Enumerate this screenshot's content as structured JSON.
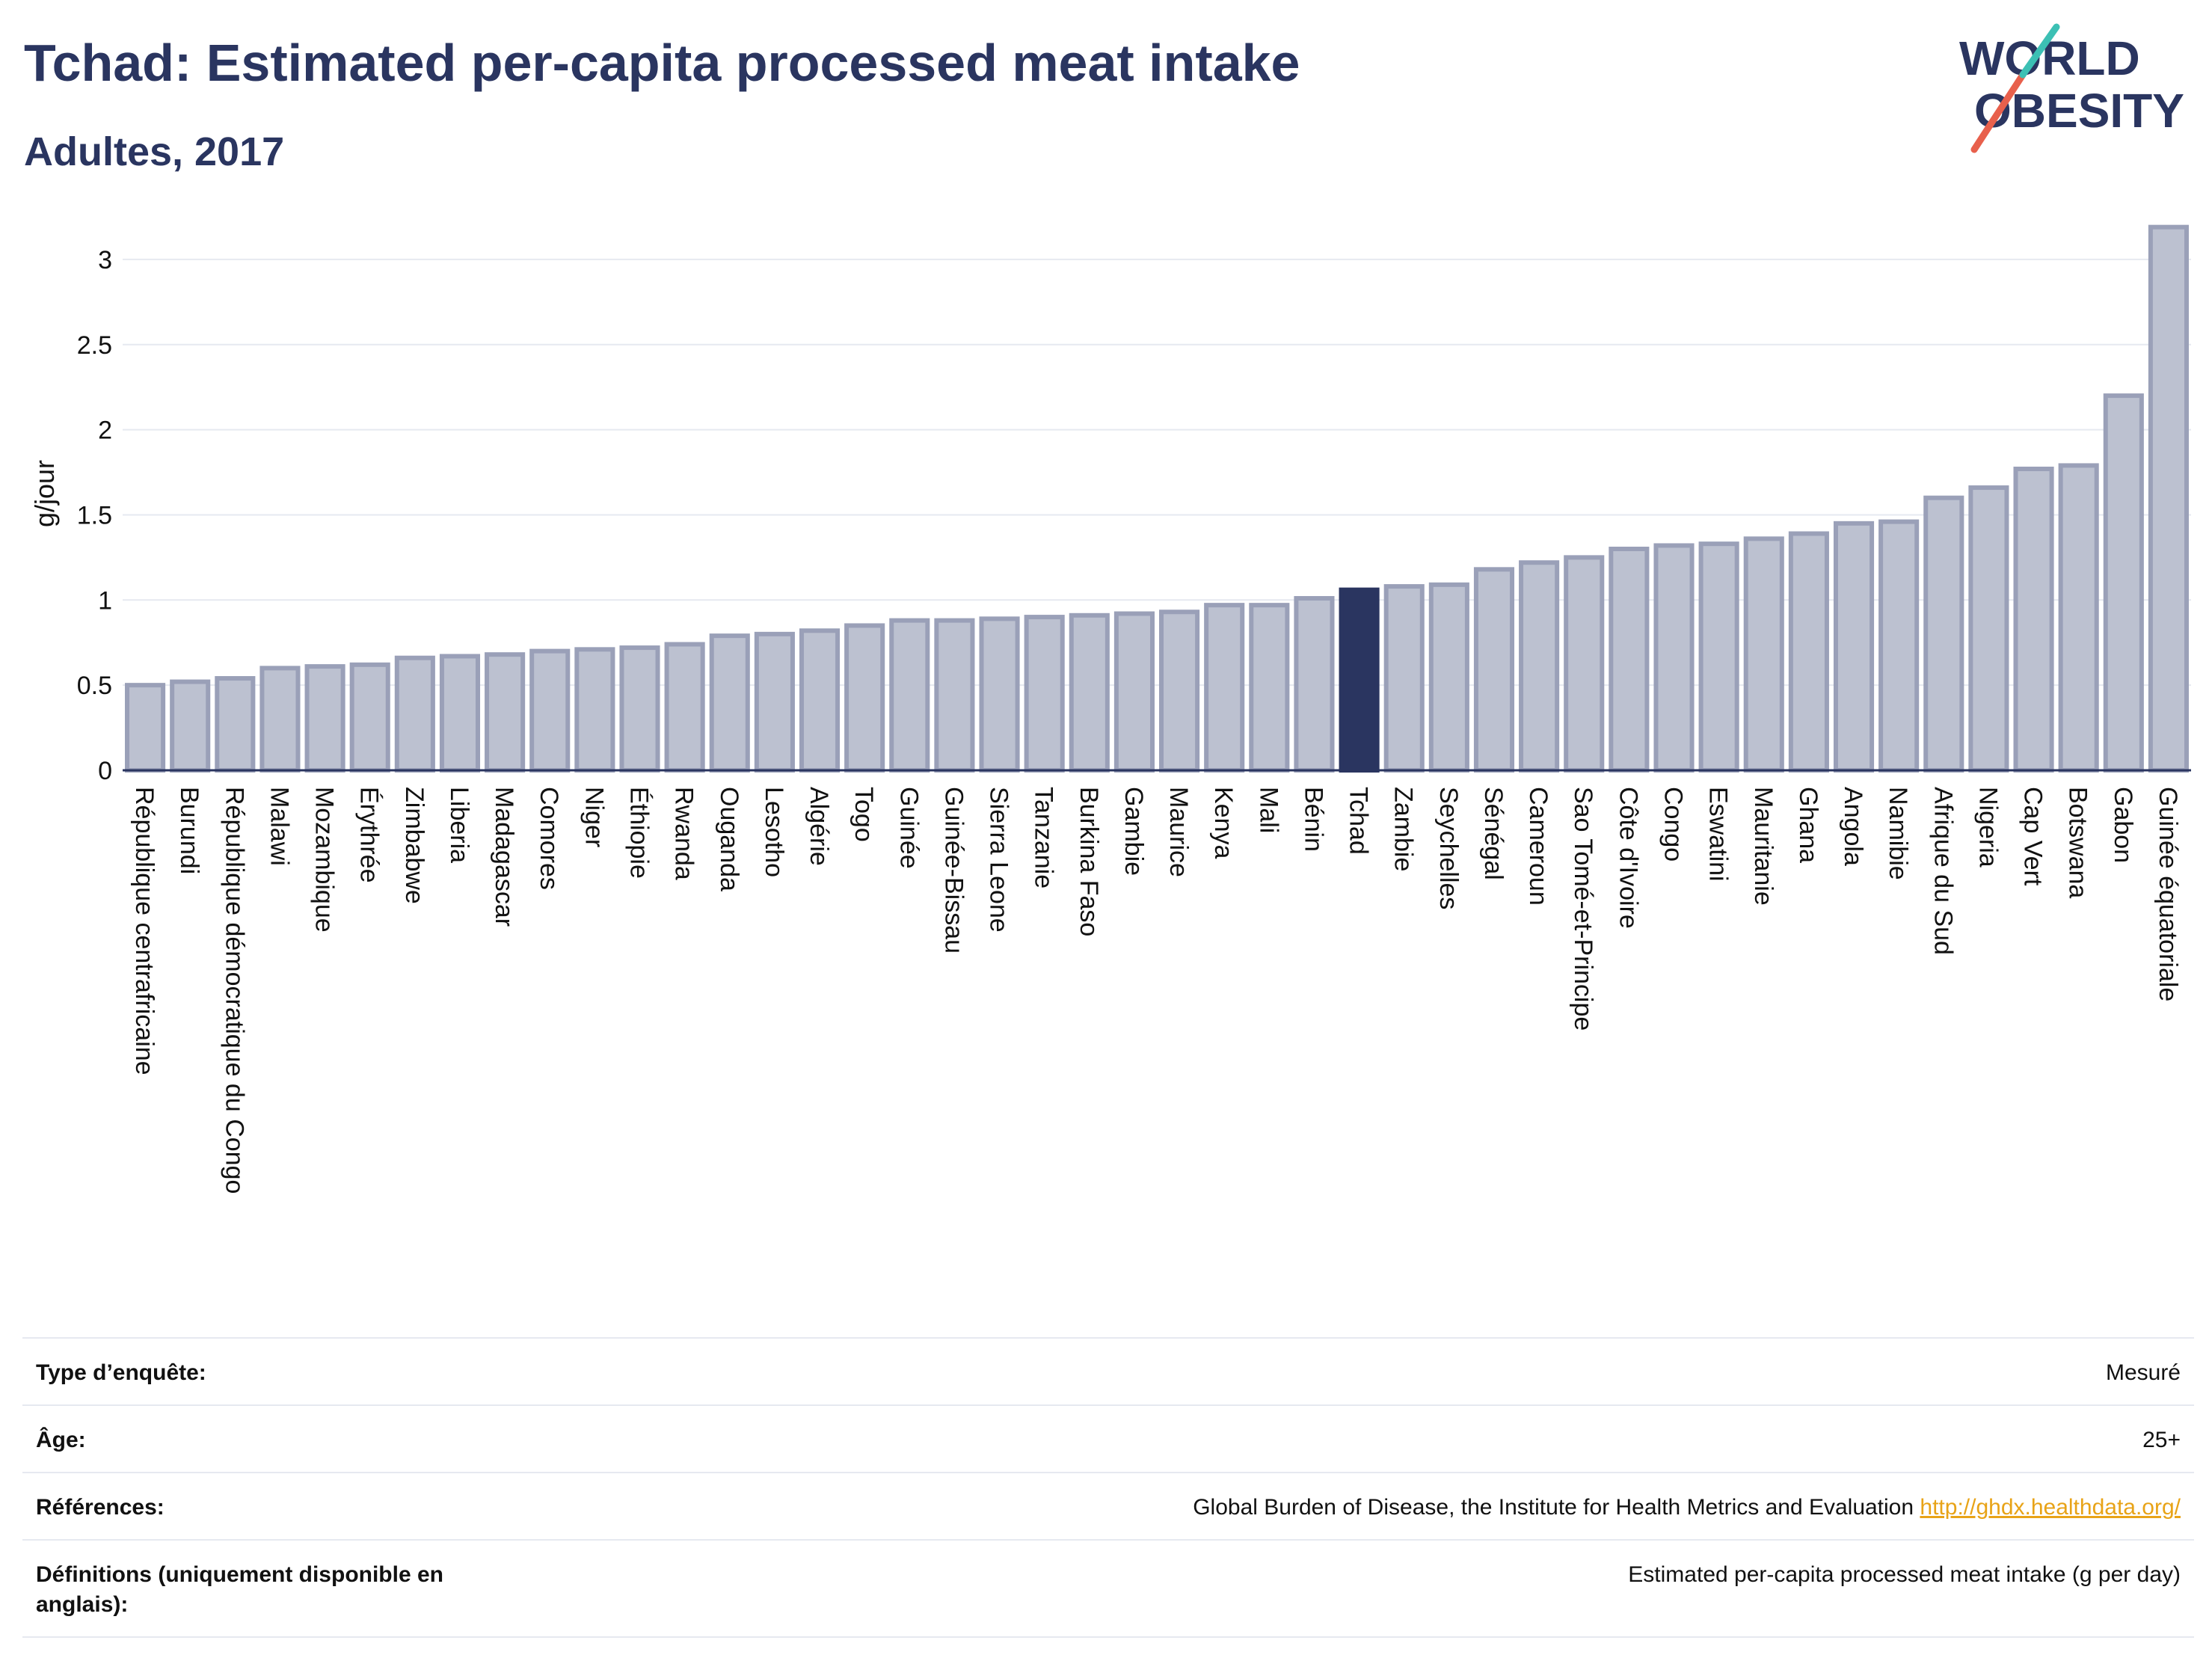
{
  "title": "Tchad: Estimated per-capita processed meat intake",
  "subtitle": "Adultes, 2017",
  "logo": {
    "line1": "WORLD",
    "line2": "OBESITY",
    "colors": [
      "#2a3560",
      "#e8604c",
      "#3cc0b4"
    ]
  },
  "colors": {
    "bar": "#bcc1d0",
    "bar_border": "#9aa0b8",
    "highlight": "#2a3560",
    "grid": "#e6e9f0",
    "axis_text": "#111111"
  },
  "chart_data": {
    "type": "bar",
    "title": "Tchad: Estimated per-capita processed meat intake",
    "subtitle": "Adultes, 2017",
    "ylabel": "g/jour",
    "xlabel": "",
    "ylim": [
      0,
      3.25
    ],
    "yticks": [
      0,
      0.5,
      1,
      1.5,
      2,
      2.5,
      3
    ],
    "ytick_labels": [
      "0",
      "0.5",
      "1",
      "1.5",
      "2",
      "2.5",
      "3"
    ],
    "grid": true,
    "highlight": "Tchad",
    "categories": [
      "République centrafricaine",
      "Burundi",
      "République démocratique du Congo",
      "Malawi",
      "Mozambique",
      "Érythrée",
      "Zimbabwe",
      "Liberia",
      "Madagascar",
      "Comores",
      "Niger",
      "Éthiopie",
      "Rwanda",
      "Ouganda",
      "Lesotho",
      "Algérie",
      "Togo",
      "Guinée",
      "Guinée-Bissau",
      "Sierra Leone",
      "Tanzanie",
      "Burkina Faso",
      "Gambie",
      "Maurice",
      "Kenya",
      "Mali",
      "Bénin",
      "Tchad",
      "Zambie",
      "Seychelles",
      "Sénégal",
      "Cameroun",
      "Sao Tomé-et-Principe",
      "Côte d'Ivoire",
      "Congo",
      "Eswatini",
      "Mauritanie",
      "Ghana",
      "Angola",
      "Namibie",
      "Afrique du Sud",
      "Nigeria",
      "Cap Vert",
      "Botswana",
      "Gabon",
      "Guinée équatoriale"
    ],
    "values": [
      0.5,
      0.52,
      0.54,
      0.6,
      0.61,
      0.62,
      0.66,
      0.67,
      0.68,
      0.7,
      0.71,
      0.72,
      0.74,
      0.79,
      0.8,
      0.82,
      0.85,
      0.88,
      0.88,
      0.89,
      0.9,
      0.91,
      0.92,
      0.93,
      0.97,
      0.97,
      1.01,
      1.06,
      1.08,
      1.09,
      1.18,
      1.22,
      1.25,
      1.3,
      1.32,
      1.33,
      1.36,
      1.39,
      1.45,
      1.46,
      1.6,
      1.66,
      1.77,
      1.79,
      2.2,
      3.19
    ]
  },
  "info": [
    {
      "label": "Type d’enquête:",
      "value": "Mesuré"
    },
    {
      "label": "Âge:",
      "value": "25+"
    },
    {
      "label": "Références:",
      "value": "Global Burden of Disease, the Institute for Health Metrics and Evaluation",
      "link": "http://ghdx.healthdata.org/"
    },
    {
      "label": "Définitions (uniquement disponible en anglais):",
      "value": "Estimated per-capita processed meat intake (g per day)"
    }
  ]
}
